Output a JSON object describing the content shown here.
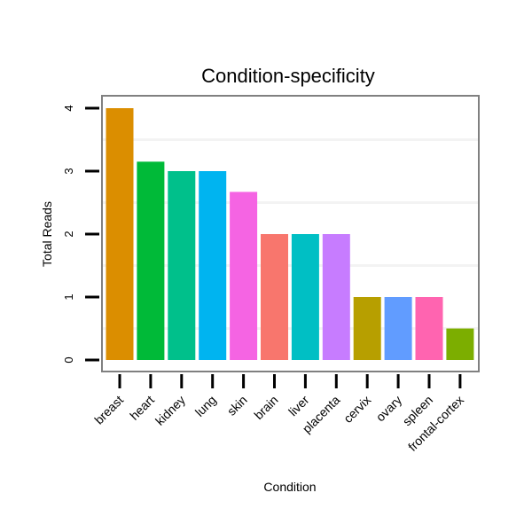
{
  "chart_data": {
    "type": "bar",
    "title": "Condition-specificity",
    "xlabel": "Condition",
    "ylabel": "Total Reads",
    "ylim": [
      0,
      4
    ],
    "yticks": [
      0,
      1,
      2,
      3,
      4
    ],
    "categories": [
      "breast",
      "heart",
      "kidney",
      "lung",
      "skin",
      "brain",
      "liver",
      "placenta",
      "cervix",
      "ovary",
      "spleen",
      "frontal-cortex"
    ],
    "values": [
      4,
      3.15,
      3,
      3,
      2.67,
      2,
      2,
      2,
      1,
      1,
      1,
      0.5
    ],
    "colors": [
      "#DB8E00",
      "#00BA38",
      "#00C08B",
      "#00B4F0",
      "#F564E3",
      "#F8766D",
      "#00BFC4",
      "#C77CFF",
      "#B79F00",
      "#619CFF",
      "#FF64B0",
      "#7CAE00"
    ],
    "grid": true
  }
}
